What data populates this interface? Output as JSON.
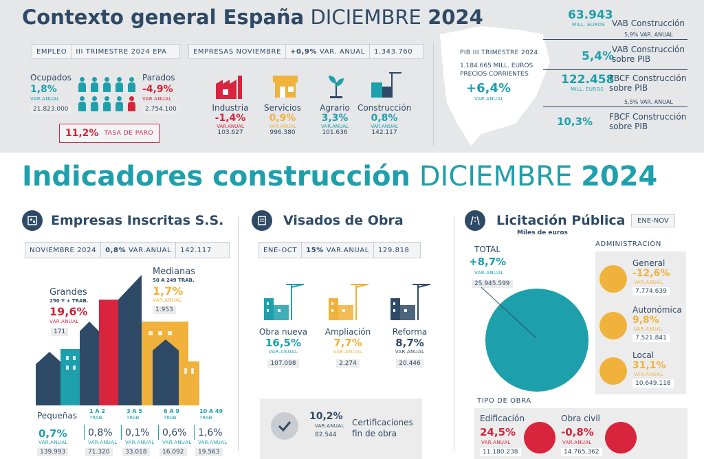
{
  "top": {
    "title_bold": "Contexto general España",
    "title_light": "DICIEMBRE",
    "title_year": "2024",
    "empleo_bar": [
      "EMPLEO",
      "III TRIMESTRE 2024 EPA"
    ],
    "ocupados_label": "Ocupados",
    "ocupados_pct": "1,8%",
    "ocupados_va": "VAR.ANUAL",
    "ocupados_num": "21.823.000",
    "parados_label": "Parados",
    "parados_pct": "-4,9%",
    "parados_va": "VAR.ANUAL",
    "parados_num": "2.754.100",
    "tasa_pct": "11,2%",
    "tasa_label": "TASA DE PARO",
    "empresas_bar": {
      "label": "EMPRESAS NOVIEMBRE",
      "pct": "+0,9%",
      "va": "VAR. ANUAL",
      "num": "1.343.760"
    },
    "sectors": [
      {
        "name": "Industria",
        "pct": "-1,4%",
        "va": "VAR.ANUAL",
        "num": "103.627",
        "color": "#d8243c"
      },
      {
        "name": "Servicios",
        "pct": "0,9%",
        "va": "VAR.ANUAL",
        "num": "996.380",
        "color": "#f0b23a"
      },
      {
        "name": "Agrario",
        "pct": "3,3%",
        "va": "VAR.ANUAL",
        "num": "101.636",
        "color": "#1ea0ac"
      },
      {
        "name": "Construcción",
        "pct": "0,8%",
        "va": "VAR.ANUAL",
        "num": "142.117",
        "color": "#1ea0ac"
      }
    ],
    "pib": {
      "label": "PIB III TRIMESTRE 2024",
      "num": "1.184.665 MILL. EUROS",
      "sub": "PRECIOS CORRIENTES",
      "pct": "+6,4%",
      "va": "VAR.ANUAL"
    },
    "right": {
      "vab_num": "63.943",
      "vab_unit": "MILL. EUROS",
      "vab_label": "VAB Construcción",
      "vab_va": "5,9% VAR. ANUAL",
      "vab_pib_pct": "5,4%",
      "vab_pib_label1": "VAB Construcción",
      "vab_pib_label2": "sobre PIB",
      "fbcf_num": "122.458",
      "fbcf_unit": "MILL. EUROS",
      "fbcf_label1": "FBCF Construcción",
      "fbcf_label2": "sobre PIB",
      "fbcf_va": "5,5% VAR. ANUAL",
      "fbcf_pib_pct": "10,3%",
      "fbcf_pib_label1": "FBCF Construcción",
      "fbcf_pib_label2": "sobre PIB"
    }
  },
  "main": {
    "title_bold": "Indicadores construcción",
    "title_light": "DICIEMBRE",
    "title_year": "2024"
  },
  "empresas": {
    "title": "Empresas Inscritas S.S.",
    "bar": {
      "period": "NOVIEMBRE 2024",
      "pct": "0,8%",
      "va": "VAR.ANUAL",
      "num": "142.117"
    },
    "grandes": {
      "label": "Grandes",
      "sub": "250 Y + TRAB.",
      "pct": "19,6%",
      "va": "VAR.ANUAL",
      "num": "171"
    },
    "medianas": {
      "label": "Medianas",
      "sub": "50 A 249 TRAB.",
      "pct": "1,7%",
      "va": "VAR.ANUAL",
      "num": "1.953"
    },
    "pequenas": {
      "label": "Pequeñas",
      "pct": "0,7%",
      "va": "VAR.ANUAL",
      "num": "139.993"
    },
    "groups": [
      {
        "range": "1 A 2",
        "trab": "TRAB.",
        "pct": "0,8%",
        "va": "VAR.ANUAL",
        "num": "71.320"
      },
      {
        "range": "3 A 5",
        "trab": "TRAB.",
        "pct": "0,1%",
        "va": "VAR.ANUAL",
        "num": "33.018"
      },
      {
        "range": "6 A 9",
        "trab": "TRAB.",
        "pct": "0,6%",
        "va": "VAR.ANUAL",
        "num": "16.092"
      },
      {
        "range": "10 A 49",
        "trab": "TRAB.",
        "pct": "1,6%",
        "va": "VAR.ANUAL",
        "num": "19.563"
      }
    ]
  },
  "visados": {
    "title": "Visados de Obra",
    "bar": {
      "period": "ENE-OCT",
      "pct": "15%",
      "va": "VAR.ANUAL",
      "num": "129.818"
    },
    "items": [
      {
        "name": "Obra nueva",
        "pct": "16,5%",
        "va": "VAR.ANUAL",
        "num": "107.098",
        "color": "#1ea0ac"
      },
      {
        "name": "Ampliación",
        "pct": "7,7%",
        "va": "VAR.ANUAL",
        "num": "2.274",
        "color": "#f0b23a"
      },
      {
        "name": "Reforma",
        "pct": "8,7%",
        "va": "VAR.ANUAL",
        "num": "20.446",
        "color": "#2e4a66"
      }
    ],
    "cert": {
      "pct": "10,2%",
      "va": "VAR.ANUAL",
      "num": "82.544",
      "label1": "Certificaciones",
      "label2": "fin de obra"
    }
  },
  "licitacion": {
    "title": "Licitación Pública",
    "period": "ENE-NOV",
    "unit": "Miles de euros",
    "total_label": "TOTAL",
    "total_pct": "+8,7%",
    "total_va": "VAR.ANUAL",
    "total_num": "25.945.599",
    "admin_label": "ADMINISTRACIÓN",
    "admins": [
      {
        "name": "General",
        "pct": "-12,6%",
        "va": "VAR.ANUAL",
        "num": "7.774.639"
      },
      {
        "name": "Autonómica",
        "pct": "9,8%",
        "va": "VAR.ANUAL",
        "num": "7.521.841"
      },
      {
        "name": "Local",
        "pct": "31,1%",
        "va": "VAR.ANUAL",
        "num": "10.649.118"
      }
    ],
    "tipo_label": "TIPO DE OBRA",
    "tipos": [
      {
        "name": "Edificación",
        "pct": "24,5%",
        "va": "VAR.ANUAL",
        "num": "11.180.238"
      },
      {
        "name": "Obra civil",
        "pct": "-0,8%",
        "va": "VAR.ANUAL",
        "num": "14.765.362"
      }
    ],
    "colors": {
      "total": "#1ea0ac",
      "admin": "#f0b23a",
      "tipo": "#d8243c"
    }
  }
}
